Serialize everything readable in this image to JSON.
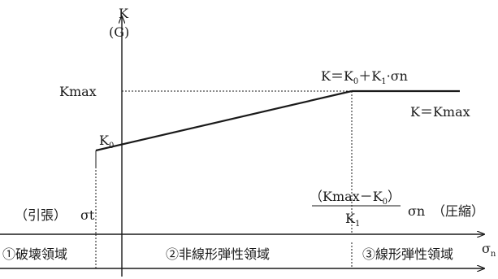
{
  "labels": {
    "y_axis_main": "K",
    "y_axis_sub": "(G)",
    "kmax": "Kmax",
    "k0_main": "K",
    "k0_sub": "0",
    "formula_upper": {
      "p1": "K＝K",
      "p1_sub": "0",
      "p2": "＋K",
      "p2_sub": "1",
      "p3": "·σn"
    },
    "formula_right": "K＝Kmax",
    "tension": "（引張）",
    "sigma_t": "σt",
    "fraction_num_a": "（Kmax－K",
    "fraction_num_sub": "0",
    "fraction_num_b": "）",
    "fraction_den": "K",
    "fraction_den_sub": "1",
    "fraction_sigma": "σn",
    "compression": "（圧縮）",
    "x_axis_label": "σ",
    "x_axis_label_sub": "n"
  },
  "regions": [
    "①破壊領域",
    "②非線形弾性領域",
    "③線形弾性領域"
  ]
}
